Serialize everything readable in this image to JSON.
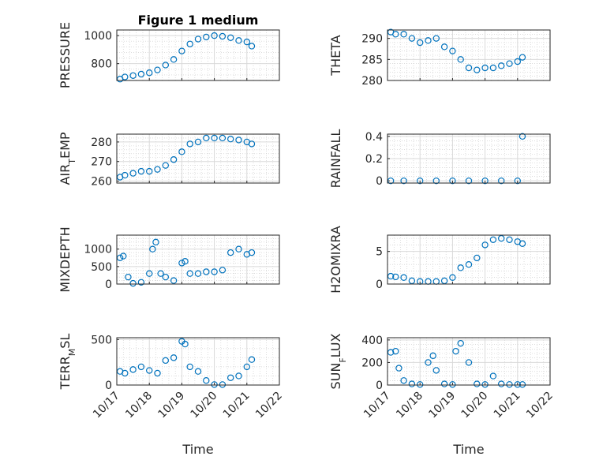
{
  "figure": {
    "title": "Figure 1 medium",
    "xlabel": "Time",
    "marker_color": "#0072BD",
    "grid": true,
    "minor_grid": true
  },
  "chart_data": [
    {
      "type": "scatter",
      "ylabel": "PRESSURE",
      "xlim": [
        0,
        5
      ],
      "ylim": [
        680,
        1040
      ],
      "yticks": [
        800,
        1000
      ],
      "ytick_labels": [
        "800",
        "1000"
      ],
      "xticks": [
        0,
        1,
        2,
        3,
        4,
        5
      ],
      "xtick_labels": [],
      "series": [
        {
          "x": [
            0.1,
            0.25,
            0.5,
            0.75,
            1.0,
            1.25,
            1.5,
            1.75,
            2.0,
            2.25,
            2.5,
            2.75,
            3.0,
            3.25,
            3.5,
            3.75,
            4.0,
            4.15
          ],
          "y": [
            690,
            705,
            715,
            725,
            735,
            755,
            790,
            830,
            890,
            940,
            975,
            990,
            1000,
            995,
            985,
            965,
            955,
            925
          ]
        }
      ]
    },
    {
      "type": "scatter",
      "ylabel": "THETA",
      "xlim": [
        0,
        5
      ],
      "ylim": [
        280,
        292
      ],
      "yticks": [
        280,
        285,
        290
      ],
      "ytick_labels": [
        "280",
        "285",
        "290"
      ],
      "xticks": [
        0,
        1,
        2,
        3,
        4,
        5
      ],
      "xtick_labels": [],
      "series": [
        {
          "x": [
            0.1,
            0.25,
            0.5,
            0.75,
            1.0,
            1.25,
            1.5,
            1.75,
            2.0,
            2.25,
            2.5,
            2.75,
            3.0,
            3.25,
            3.5,
            3.75,
            4.0,
            4.15
          ],
          "y": [
            291.5,
            291,
            291,
            290,
            289,
            289.5,
            290,
            288,
            287,
            285,
            283,
            282.5,
            283,
            283,
            283.5,
            284,
            284.5,
            285.5
          ]
        }
      ]
    },
    {
      "type": "scatter",
      "ylabel": "AIR_TEMP",
      "xlim": [
        0,
        5
      ],
      "ylim": [
        259,
        284
      ],
      "yticks": [
        260,
        270,
        280
      ],
      "ytick_labels": [
        "260",
        "270",
        "280"
      ],
      "xticks": [
        0,
        1,
        2,
        3,
        4,
        5
      ],
      "xtick_labels": [],
      "series": [
        {
          "x": [
            0.1,
            0.25,
            0.5,
            0.75,
            1.0,
            1.25,
            1.5,
            1.75,
            2.0,
            2.25,
            2.5,
            2.75,
            3.0,
            3.25,
            3.5,
            3.75,
            4.0,
            4.15
          ],
          "y": [
            262,
            263,
            264,
            265,
            265,
            266,
            268,
            271,
            275,
            279,
            280,
            282,
            282,
            282,
            281.5,
            281,
            280,
            279
          ]
        }
      ]
    },
    {
      "type": "scatter",
      "ylabel": "RAINFALL",
      "xlim": [
        0,
        5
      ],
      "ylim": [
        -0.02,
        0.42
      ],
      "yticks": [
        0,
        0.2,
        0.4
      ],
      "ytick_labels": [
        "0",
        "0.2",
        "0.4"
      ],
      "xticks": [
        0,
        1,
        2,
        3,
        4,
        5
      ],
      "xtick_labels": [],
      "series": [
        {
          "x": [
            0.1,
            0.5,
            1.0,
            1.5,
            2.0,
            2.5,
            3.0,
            3.5,
            4.0,
            4.15
          ],
          "y": [
            0,
            0,
            0,
            0,
            0,
            0,
            0,
            0,
            0,
            0.4
          ]
        }
      ]
    },
    {
      "type": "scatter",
      "ylabel": "MIXDEPTH",
      "xlim": [
        0,
        5
      ],
      "ylim": [
        0,
        1400
      ],
      "yticks": [
        0,
        500,
        1000
      ],
      "ytick_labels": [
        "0",
        "500",
        "1000"
      ],
      "xticks": [
        0,
        1,
        2,
        3,
        4,
        5
      ],
      "xtick_labels": [],
      "series": [
        {
          "x": [
            0.1,
            0.2,
            0.35,
            0.5,
            0.75,
            1.0,
            1.1,
            1.2,
            1.35,
            1.5,
            1.75,
            2.0,
            2.1,
            2.25,
            2.5,
            2.75,
            3.0,
            3.25,
            3.5,
            3.75,
            4.0,
            4.15
          ],
          "y": [
            750,
            800,
            200,
            20,
            50,
            300,
            1000,
            1200,
            300,
            200,
            100,
            600,
            650,
            300,
            300,
            350,
            350,
            400,
            900,
            1000,
            850,
            900
          ]
        }
      ]
    },
    {
      "type": "scatter",
      "ylabel": "H2OMIXRA",
      "xlim": [
        0,
        5
      ],
      "ylim": [
        0,
        7.5
      ],
      "yticks": [
        0,
        5
      ],
      "ytick_labels": [
        "0",
        "5"
      ],
      "xticks": [
        0,
        1,
        2,
        3,
        4,
        5
      ],
      "xtick_labels": [],
      "series": [
        {
          "x": [
            0.1,
            0.25,
            0.5,
            0.75,
            1.0,
            1.25,
            1.5,
            1.75,
            2.0,
            2.25,
            2.5,
            2.75,
            3.0,
            3.25,
            3.5,
            3.75,
            4.0,
            4.15
          ],
          "y": [
            1.2,
            1.1,
            1.0,
            0.5,
            0.4,
            0.4,
            0.4,
            0.5,
            1.0,
            2.5,
            3.0,
            4.0,
            6.0,
            6.8,
            7.0,
            6.8,
            6.5,
            6.2
          ]
        }
      ]
    },
    {
      "type": "scatter",
      "ylabel": "TERR_MSL",
      "xlim": [
        0,
        5
      ],
      "ylim": [
        0,
        520
      ],
      "yticks": [
        0,
        500
      ],
      "ytick_labels": [
        "0",
        "500"
      ],
      "xticks": [
        0,
        1,
        2,
        3,
        4,
        5
      ],
      "xtick_labels": [
        "10/17",
        "10/18",
        "10/19",
        "10/20",
        "10/21",
        "10/22"
      ],
      "series": [
        {
          "x": [
            0.1,
            0.25,
            0.5,
            0.75,
            1.0,
            1.25,
            1.5,
            1.75,
            2.0,
            2.1,
            2.25,
            2.5,
            2.75,
            3.0,
            3.25,
            3.5,
            3.75,
            4.0,
            4.15
          ],
          "y": [
            150,
            130,
            170,
            200,
            160,
            130,
            270,
            300,
            480,
            450,
            200,
            150,
            50,
            5,
            5,
            80,
            100,
            200,
            280
          ]
        }
      ]
    },
    {
      "type": "scatter",
      "ylabel": "SUN_FLUX",
      "xlim": [
        0,
        5
      ],
      "ylim": [
        0,
        420
      ],
      "yticks": [
        0,
        200,
        400
      ],
      "ytick_labels": [
        "0",
        "200",
        "400"
      ],
      "xticks": [
        0,
        1,
        2,
        3,
        4,
        5
      ],
      "xtick_labels": [
        "10/17",
        "10/18",
        "10/19",
        "10/20",
        "10/21",
        "10/22"
      ],
      "series": [
        {
          "x": [
            0.1,
            0.25,
            0.35,
            0.5,
            0.75,
            1.0,
            1.25,
            1.4,
            1.5,
            1.75,
            2.0,
            2.1,
            2.25,
            2.5,
            2.75,
            3.0,
            3.25,
            3.5,
            3.75,
            4.0,
            4.15
          ],
          "y": [
            290,
            300,
            150,
            40,
            10,
            5,
            200,
            260,
            130,
            10,
            5,
            300,
            370,
            200,
            10,
            5,
            80,
            10,
            5,
            5,
            5
          ]
        }
      ]
    }
  ]
}
